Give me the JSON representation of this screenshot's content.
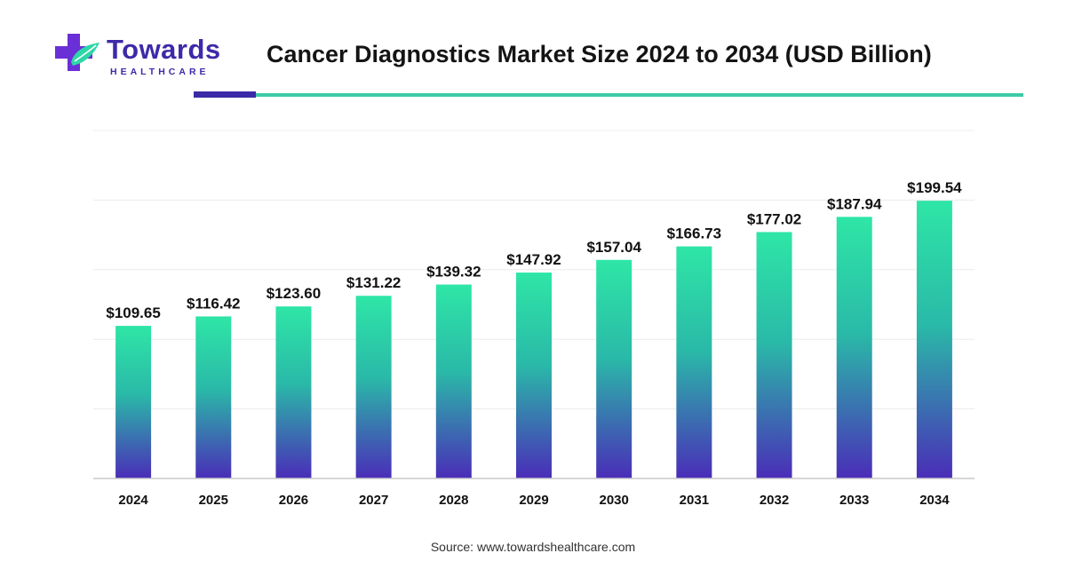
{
  "logo": {
    "name": "Towards",
    "tagline": "HEALTHCARE",
    "colors": {
      "purple": "#6a2fd6",
      "teal": "#2fd6a8",
      "text": "#3d2aa8"
    }
  },
  "header": {
    "title": "Cancer Diagnostics Market Size 2024 to 2034 (USD Billion)",
    "accent_colors": {
      "dark": "#3a2aa8",
      "light": "#3cc9a6"
    }
  },
  "chart_data": {
    "type": "bar",
    "categories": [
      "2024",
      "2025",
      "2026",
      "2027",
      "2028",
      "2029",
      "2030",
      "2031",
      "2032",
      "2033",
      "2034"
    ],
    "values": [
      109.65,
      116.42,
      123.6,
      131.22,
      139.32,
      147.92,
      157.04,
      166.73,
      177.02,
      187.94,
      199.54
    ],
    "value_labels": [
      "$109.65",
      "$116.42",
      "$123.60",
      "$131.22",
      "$139.32",
      "$147.92",
      "$157.04",
      "$166.73",
      "$177.02",
      "$187.94",
      "$199.54"
    ],
    "title": "Cancer Diagnostics Market Size 2024 to 2034 (USD Billion)",
    "xlabel": "",
    "ylabel": "",
    "ylim": [
      0,
      250
    ],
    "grid": true,
    "legend": "none",
    "bar_gradient": {
      "top": "#2ee6a6",
      "bottom": "#4a2db8"
    }
  },
  "footer": {
    "source": "Source: www.towardshealthcare.com"
  }
}
